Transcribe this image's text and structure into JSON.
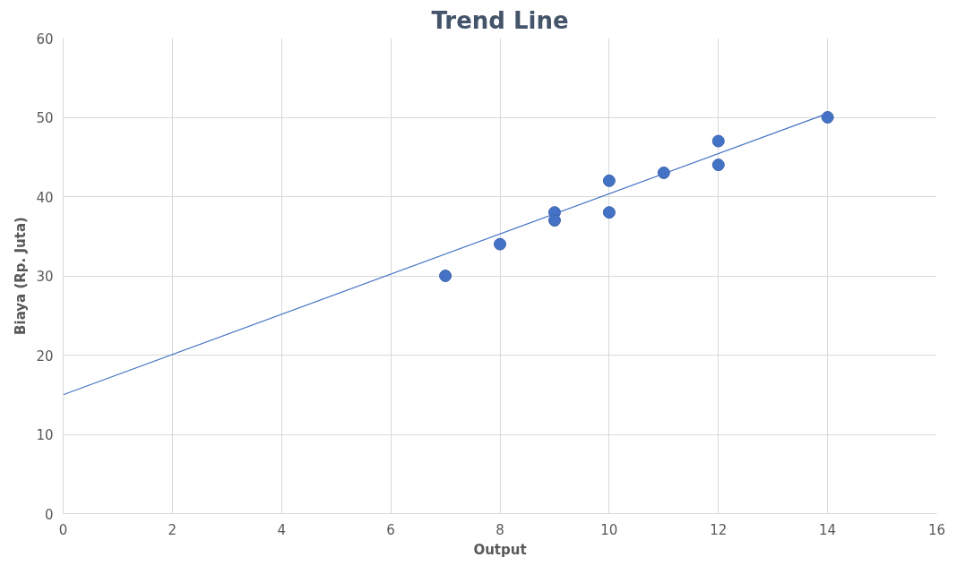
{
  "chart_data": {
    "type": "scatter",
    "title": "Trend Line",
    "xlabel": "Output",
    "ylabel": "Biaya (Rp. Juta)",
    "series": [
      {
        "marker": "circle",
        "color": "#4472c4",
        "x": [
          7,
          8,
          9,
          9,
          10,
          10,
          11,
          12,
          12,
          14
        ],
        "values": [
          30,
          34,
          38,
          37,
          42,
          38,
          43,
          47,
          44,
          50
        ]
      },
      {
        "type": "line",
        "color": "#4472c4",
        "x": [
          0,
          14
        ],
        "values": [
          15,
          50.5
        ]
      }
    ],
    "xlim": [
      0,
      16
    ],
    "xticks": [
      0,
      2,
      4,
      6,
      8,
      10,
      12,
      14,
      16
    ],
    "ylim": [
      0,
      60
    ],
    "yticks": [
      0,
      10,
      20,
      30,
      40,
      50,
      60
    ],
    "grid": true
  }
}
